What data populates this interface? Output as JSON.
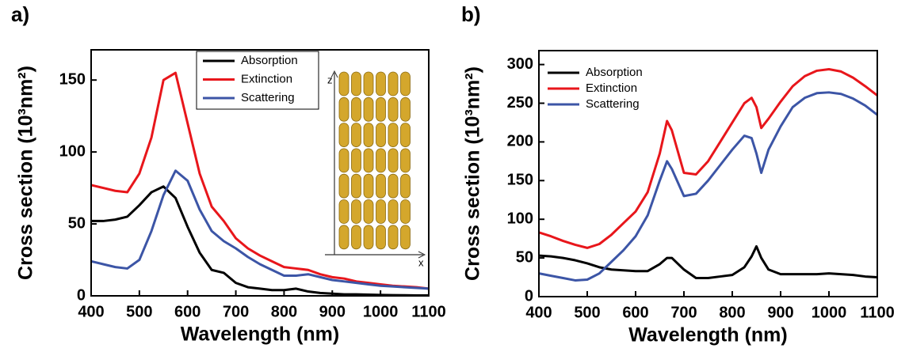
{
  "chart_data": [
    {
      "type": "line",
      "panel_label": "a)",
      "x_label": "Wavelength (nm)",
      "y_label": "Cross section (10³nm²)",
      "x": [
        400,
        425,
        450,
        475,
        500,
        525,
        550,
        575,
        600,
        625,
        650,
        675,
        700,
        725,
        750,
        775,
        800,
        825,
        850,
        875,
        900,
        925,
        950,
        975,
        1000,
        1025,
        1050,
        1075,
        1100
      ],
      "series": [
        {
          "name": "Absorption",
          "color": "#000000",
          "values": [
            52,
            52,
            53,
            55,
            63,
            72,
            76,
            68,
            48,
            30,
            18,
            16,
            9,
            6,
            5,
            4,
            4,
            5,
            3,
            2,
            1.5,
            1,
            1,
            0.8,
            0.6,
            0.5,
            0.4,
            0.3,
            0.3
          ]
        },
        {
          "name": "Extinction",
          "color": "#e8161b",
          "values": [
            77,
            75,
            73,
            72,
            85,
            110,
            150,
            155,
            120,
            85,
            62,
            52,
            40,
            33,
            28,
            24,
            20,
            19,
            18,
            15,
            13,
            12,
            10,
            9,
            8,
            7,
            6.5,
            6,
            5
          ]
        },
        {
          "name": "Scattering",
          "color": "#3c55a6",
          "values": [
            24,
            22,
            20,
            19,
            25,
            45,
            70,
            87,
            80,
            60,
            45,
            38,
            33,
            27,
            22,
            18,
            14,
            14,
            15,
            13,
            11,
            10,
            9,
            8,
            7,
            6.5,
            6,
            5.5,
            5
          ]
        }
      ],
      "xlim": [
        400,
        1100
      ],
      "xticks": [
        400,
        500,
        600,
        700,
        800,
        900,
        1000,
        1100
      ],
      "ylim": [
        0,
        171
      ],
      "yticks": [
        0,
        50,
        100,
        150
      ],
      "legend": "top-center",
      "legend_frame": true,
      "annotations": [
        "z",
        "x"
      ]
    },
    {
      "type": "line",
      "panel_label": "b)",
      "x_label": "Wavelength (nm)",
      "y_label": "Cross section (10³nm²)",
      "x": [
        400,
        425,
        450,
        475,
        500,
        525,
        550,
        575,
        600,
        625,
        650,
        665,
        675,
        700,
        725,
        750,
        775,
        800,
        825,
        840,
        850,
        860,
        875,
        900,
        925,
        950,
        975,
        1000,
        1025,
        1050,
        1075,
        1100
      ],
      "series": [
        {
          "name": "Absorption",
          "color": "#000000",
          "values": [
            53,
            52,
            50,
            47,
            43,
            38,
            35,
            34,
            33,
            33,
            42,
            50,
            50,
            35,
            24,
            24,
            26,
            28,
            38,
            52,
            65,
            50,
            35,
            29,
            29,
            29,
            29,
            30,
            29,
            28,
            26,
            25
          ]
        },
        {
          "name": "Extinction",
          "color": "#e8161b",
          "values": [
            83,
            78,
            72,
            67,
            63,
            68,
            80,
            95,
            110,
            135,
            185,
            227,
            215,
            160,
            158,
            175,
            200,
            225,
            250,
            257,
            245,
            218,
            230,
            252,
            272,
            285,
            292,
            294,
            291,
            283,
            272,
            260
          ]
        },
        {
          "name": "Scattering",
          "color": "#3c55a6",
          "values": [
            30,
            27,
            24,
            21,
            22,
            30,
            45,
            60,
            78,
            105,
            150,
            175,
            165,
            130,
            133,
            150,
            170,
            190,
            208,
            205,
            185,
            160,
            190,
            220,
            245,
            257,
            263,
            264,
            262,
            256,
            247,
            235
          ]
        }
      ],
      "xlim": [
        400,
        1100
      ],
      "xticks": [
        400,
        500,
        600,
        700,
        800,
        900,
        1000,
        1100
      ],
      "ylim": [
        0,
        318
      ],
      "yticks": [
        0,
        50,
        100,
        150,
        200,
        250,
        300
      ],
      "legend": "top-left",
      "legend_frame": false
    }
  ]
}
